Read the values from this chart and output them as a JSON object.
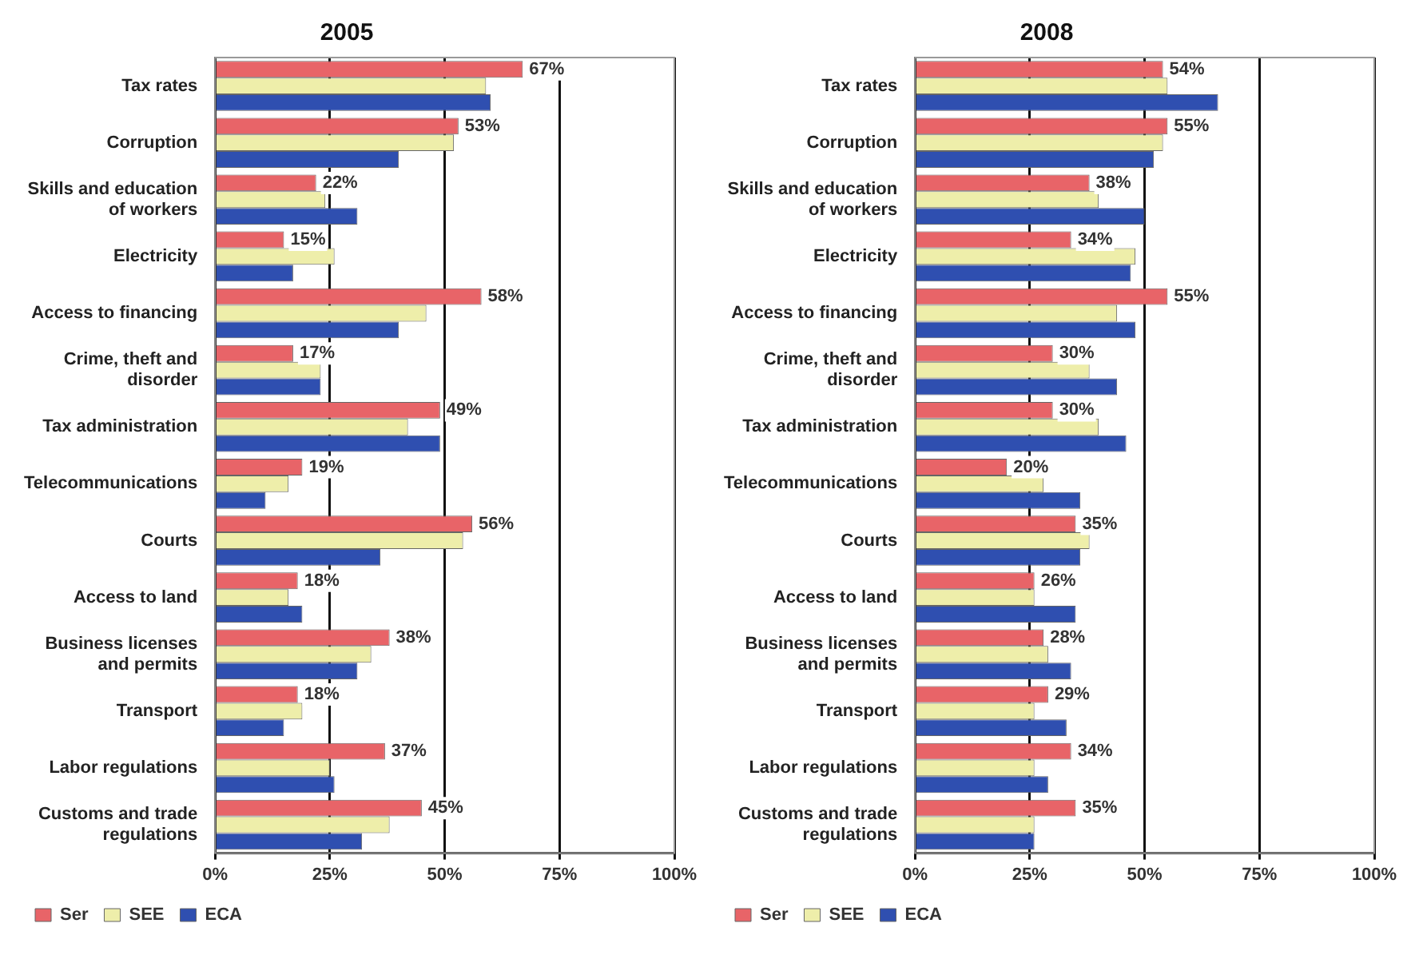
{
  "chart_data": [
    {
      "type": "bar",
      "orientation": "horizontal",
      "title": "2005",
      "categories": [
        "Tax rates",
        "Corruption",
        "Skills and education of workers",
        "Electricity",
        "Access to financing",
        "Crime, theft and disorder",
        "Tax administration",
        "Telecommunications",
        "Courts",
        "Access to land",
        "Business licenses and permits",
        "Transport",
        "Labor regulations",
        "Customs and trade regulations"
      ],
      "series": [
        {
          "name": "Ser",
          "color": "#e86468",
          "values": [
            67,
            53,
            22,
            15,
            58,
            17,
            49,
            19,
            56,
            18,
            38,
            18,
            37,
            45
          ],
          "value_labels": [
            "67%",
            "53%",
            "22%",
            "15%",
            "58%",
            "17%",
            "49%",
            "19%",
            "56%",
            "18%",
            "38%",
            "18%",
            "37%",
            "45%"
          ]
        },
        {
          "name": "SEE",
          "color": "#eeeeaa",
          "values": [
            59,
            52,
            24,
            26,
            46,
            23,
            42,
            16,
            54,
            16,
            34,
            19,
            25,
            38
          ]
        },
        {
          "name": "ECA",
          "color": "#2f4fb0",
          "values": [
            60,
            40,
            31,
            17,
            40,
            23,
            49,
            11,
            36,
            19,
            31,
            15,
            26,
            32
          ]
        }
      ],
      "xlim": [
        0,
        100
      ],
      "xticks": [
        {
          "value": 0,
          "label": "0%"
        },
        {
          "value": 25,
          "label": "25%"
        },
        {
          "value": 50,
          "label": "50%"
        },
        {
          "value": 75,
          "label": "75%"
        },
        {
          "value": 100,
          "label": "100%"
        }
      ],
      "grid": "x",
      "legend": "bottom left"
    },
    {
      "type": "bar",
      "orientation": "horizontal",
      "title": "2008",
      "categories": [
        "Tax rates",
        "Corruption",
        "Skills and education of workers",
        "Electricity",
        "Access to financing",
        "Crime, theft and disorder",
        "Tax administration",
        "Telecommunications",
        "Courts",
        "Access to land",
        "Business licenses and permits",
        "Transport",
        "Labor regulations",
        "Customs and trade regulations"
      ],
      "series": [
        {
          "name": "Ser",
          "color": "#e86468",
          "values": [
            54,
            55,
            38,
            34,
            55,
            30,
            30,
            20,
            35,
            26,
            28,
            29,
            34,
            35
          ],
          "value_labels": [
            "54%",
            "55%",
            "38%",
            "34%",
            "55%",
            "30%",
            "30%",
            "20%",
            "35%",
            "26%",
            "28%",
            "29%",
            "34%",
            "35%"
          ]
        },
        {
          "name": "SEE",
          "color": "#eeeeaa",
          "values": [
            55,
            54,
            40,
            48,
            44,
            38,
            40,
            28,
            38,
            26,
            29,
            26,
            26,
            26
          ]
        },
        {
          "name": "ECA",
          "color": "#2f4fb0",
          "values": [
            66,
            52,
            50,
            47,
            48,
            44,
            46,
            36,
            36,
            35,
            34,
            33,
            29,
            26
          ]
        }
      ],
      "xlim": [
        0,
        100
      ],
      "xticks": [
        {
          "value": 0,
          "label": "0%"
        },
        {
          "value": 25,
          "label": "25%"
        },
        {
          "value": 50,
          "label": "50%"
        },
        {
          "value": 75,
          "label": "75%"
        },
        {
          "value": 100,
          "label": "100%"
        }
      ],
      "grid": "x",
      "legend": "bottom left"
    }
  ]
}
